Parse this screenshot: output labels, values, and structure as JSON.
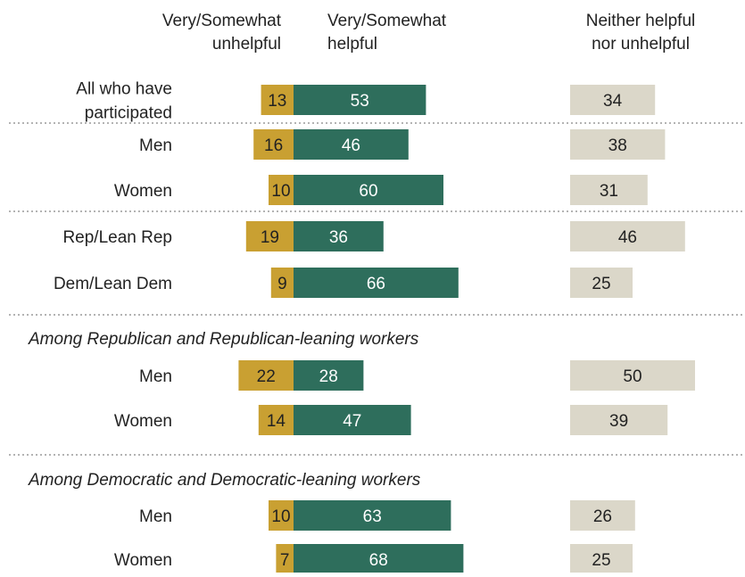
{
  "chart_data": {
    "type": "bar",
    "headers": {
      "unhelpful": [
        "Very/Somewhat",
        "unhelpful"
      ],
      "helpful": [
        "Very/Somewhat",
        "helpful"
      ],
      "neither": [
        "Neither helpful",
        "nor unhelpful"
      ]
    },
    "section_titles": [
      "Among Republican and Republican-leaning workers",
      "Among Democratic and Democratic-leaning workers"
    ],
    "categories": [
      [
        "All who have",
        "participated"
      ],
      [
        "Men"
      ],
      [
        "Women"
      ],
      [
        "Rep/Lean Rep"
      ],
      [
        "Dem/Lean Dem"
      ],
      [
        "Men"
      ],
      [
        "Women"
      ],
      [
        "Men"
      ],
      [
        "Women"
      ]
    ],
    "series": [
      {
        "name": "Very/Somewhat unhelpful",
        "values": [
          13,
          16,
          10,
          19,
          9,
          22,
          14,
          10,
          7
        ]
      },
      {
        "name": "Very/Somewhat helpful",
        "values": [
          53,
          46,
          60,
          36,
          66,
          28,
          47,
          63,
          68
        ]
      },
      {
        "name": "Neither helpful nor unhelpful",
        "values": [
          34,
          38,
          31,
          46,
          25,
          50,
          39,
          26,
          25
        ]
      }
    ],
    "colors": {
      "unhelpful": "#c9a032",
      "helpful": "#2e6e5c",
      "neither": "#dbd7c9",
      "divider": "#9a9a9a"
    }
  }
}
